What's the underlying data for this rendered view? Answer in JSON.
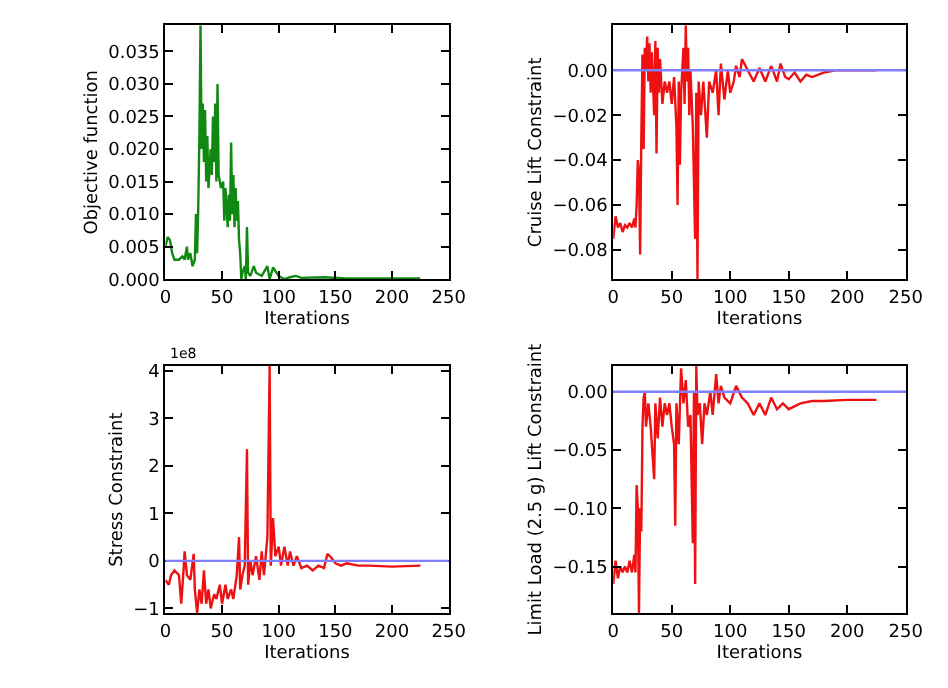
{
  "chart_data": [
    {
      "type": "line",
      "xlabel": "Iterations",
      "ylabel": "Objective function",
      "xlim": [
        0,
        250
      ],
      "xticks": [
        0,
        50,
        100,
        150,
        200,
        250
      ],
      "ylim": [
        0,
        0.039
      ],
      "yticks": [
        {
          "value": 0,
          "label": "0.000"
        },
        {
          "value": 0.005,
          "label": "0.005"
        },
        {
          "value": 0.01,
          "label": "0.010"
        },
        {
          "value": 0.015,
          "label": "0.015"
        },
        {
          "value": 0.02,
          "label": "0.020"
        },
        {
          "value": 0.025,
          "label": "0.025"
        },
        {
          "value": 0.03,
          "label": "0.030"
        },
        {
          "value": 0.035,
          "label": "0.035"
        }
      ],
      "x": [
        0,
        2,
        4,
        6,
        8,
        12,
        15,
        17,
        19,
        20,
        22,
        24,
        26,
        27,
        28,
        29,
        30,
        31,
        32,
        33,
        34,
        35,
        36,
        37,
        38,
        40,
        41,
        42,
        43,
        44,
        45,
        46,
        47,
        49,
        51,
        52,
        53,
        55,
        56,
        57,
        58,
        59,
        60,
        61,
        62,
        63,
        64,
        65,
        66,
        67,
        68,
        70,
        71,
        72,
        73,
        75,
        78,
        80,
        85,
        90,
        92,
        95,
        100,
        105,
        110,
        115,
        120,
        140,
        160,
        200,
        225
      ],
      "series": [
        {
          "color": "#118811",
          "values": [
            0.005,
            0.0065,
            0.006,
            0.004,
            0.003,
            0.003,
            0.0035,
            0.003,
            0.005,
            0.003,
            0.004,
            0.002,
            0.003,
            0.01,
            0.004,
            0.011,
            0.022,
            0.039,
            0.02,
            0.027,
            0.018,
            0.026,
            0.015,
            0.022,
            0.014,
            0.02,
            0.016,
            0.025,
            0.018,
            0.027,
            0.015,
            0.03,
            0.016,
            0.014,
            0.015,
            0.009,
            0.014,
            0.008,
            0.013,
            0.009,
            0.021,
            0.01,
            0.016,
            0.008,
            0.014,
            0.009,
            0.012,
            0.006,
            0.004,
            0,
            0.001,
            0.002,
            0,
            0.008,
            0.001,
            0.0005,
            0.002,
            0.001,
            0.0005,
            0.002,
            0,
            0.0018,
            0.0005,
            0,
            0.0003,
            0.0005,
            0.0002,
            0.0003,
            0.0001,
            0.0001,
            0.0001
          ]
        }
      ]
    },
    {
      "type": "line",
      "xlabel": "Iterations",
      "ylabel": "Cruise Lift Constraint",
      "xlim": [
        0,
        250
      ],
      "xticks": [
        0,
        50,
        100,
        150,
        200,
        250
      ],
      "ylim": [
        -0.093,
        0.02
      ],
      "yticks": [
        {
          "value": -0.08,
          "label": "−0.08"
        },
        {
          "value": -0.06,
          "label": "−0.06"
        },
        {
          "value": -0.04,
          "label": "−0.04"
        },
        {
          "value": -0.02,
          "label": "−0.02"
        },
        {
          "value": 0,
          "label": "0.00"
        }
      ],
      "ref_lines": [
        {
          "axis": "y",
          "value": 0,
          "color": "#7f7fff"
        }
      ],
      "x": [
        0,
        2,
        4,
        6,
        8,
        10,
        12,
        14,
        16,
        18,
        19,
        20,
        21,
        22,
        23,
        24,
        25,
        26,
        27,
        28,
        29,
        30,
        31,
        32,
        33,
        35,
        36,
        37,
        38,
        39,
        40,
        42,
        44,
        46,
        48,
        50,
        52,
        54,
        55,
        56,
        57,
        58,
        60,
        61,
        62,
        63,
        64,
        65,
        66,
        68,
        70,
        71,
        72,
        73,
        75,
        77,
        80,
        82,
        85,
        88,
        90,
        92,
        95,
        98,
        100,
        103,
        105,
        108,
        110,
        115,
        120,
        125,
        130,
        135,
        140,
        143,
        147,
        150,
        155,
        160,
        165,
        170,
        180,
        190,
        200,
        225
      ],
      "series": [
        {
          "color": "#ee1111",
          "values": [
            -0.075,
            -0.065,
            -0.07,
            -0.068,
            -0.072,
            -0.069,
            -0.07,
            -0.068,
            -0.07,
            -0.066,
            -0.07,
            -0.06,
            -0.04,
            -0.045,
            -0.082,
            -0.03,
            0.007,
            -0.035,
            0.01,
            0,
            0.015,
            -0.005,
            0.012,
            -0.01,
            0.008,
            -0.02,
            0.013,
            -0.037,
            0.01,
            -0.01,
            0.005,
            -0.015,
            -0.005,
            -0.01,
            -0.005,
            -0.015,
            -0.003,
            -0.025,
            -0.06,
            -0.005,
            -0.042,
            -0.01,
            0.01,
            -0.015,
            0.02,
            -0.005,
            0.01,
            -0.02,
            0,
            -0.025,
            -0.075,
            -0.01,
            -0.093,
            -0.005,
            -0.02,
            -0.005,
            -0.03,
            -0.005,
            -0.01,
            0,
            -0.02,
            0.003,
            -0.013,
            0,
            -0.01,
            -0.005,
            0.002,
            -0.003,
            0.005,
            0,
            -0.005,
            0.001,
            -0.005,
            0.002,
            -0.005,
            0.003,
            -0.003,
            -0.004,
            -0.001,
            -0.005,
            -0.002,
            -0.003,
            -0.001,
            0,
            0,
            0
          ]
        }
      ]
    },
    {
      "type": "line",
      "xlabel": "Iterations",
      "ylabel": "Stress Constraint",
      "annotations": [
        "1e8"
      ],
      "xlim": [
        0,
        250
      ],
      "xticks": [
        0,
        50,
        100,
        150,
        200,
        250
      ],
      "ylim": [
        -1.1,
        4.1
      ],
      "yticks": [
        {
          "value": -1,
          "label": "−1"
        },
        0,
        1,
        2,
        3,
        4
      ],
      "ref_lines": [
        {
          "axis": "y",
          "value": 0,
          "color": "#7f7fff"
        }
      ],
      "x": [
        0,
        3,
        5,
        8,
        12,
        14,
        16,
        17,
        19,
        22,
        25,
        26,
        28,
        30,
        32,
        34,
        36,
        38,
        40,
        43,
        45,
        48,
        50,
        53,
        55,
        58,
        60,
        63,
        65,
        66,
        68,
        70,
        72,
        73,
        75,
        77,
        80,
        83,
        85,
        87,
        90,
        92,
        93,
        95,
        97,
        100,
        102,
        105,
        108,
        110,
        113,
        116,
        120,
        125,
        130,
        135,
        140,
        143,
        147,
        150,
        155,
        160,
        170,
        180,
        200,
        225
      ],
      "series": [
        {
          "color": "#ee1111",
          "values": [
            -0.4,
            -0.5,
            -0.3,
            -0.2,
            -0.3,
            -0.9,
            -0.2,
            0.2,
            -0.3,
            -0.4,
            0.15,
            -0.6,
            -1.1,
            -0.6,
            -0.9,
            -0.2,
            -0.9,
            -0.6,
            -1.0,
            -0.7,
            -0.8,
            -0.5,
            -0.9,
            -0.5,
            -0.8,
            -0.6,
            -0.8,
            -0.3,
            0.5,
            -0.6,
            -0.3,
            -0.1,
            2.35,
            -0.5,
            0,
            -0.3,
            0.1,
            -0.4,
            0.2,
            -0.3,
            0.5,
            4.1,
            -0.1,
            0.9,
            0.1,
            0.3,
            -0.1,
            0.3,
            -0.1,
            0.2,
            -0.1,
            0.1,
            -0.15,
            -0.1,
            -0.2,
            -0.1,
            -0.15,
            0.15,
            0.05,
            -0.05,
            -0.1,
            -0.05,
            -0.1,
            -0.1,
            -0.12,
            -0.1
          ]
        }
      ]
    },
    {
      "type": "line",
      "xlabel": "Iterations",
      "ylabel": "Limit Load (2.5 g) Lift Constraint",
      "xlim": [
        0,
        250
      ],
      "xticks": [
        0,
        50,
        100,
        150,
        200,
        250
      ],
      "ylim": [
        -0.19,
        0.022
      ],
      "yticks": [
        {
          "value": -0.15,
          "label": "−0.15"
        },
        {
          "value": -0.1,
          "label": "−0.10"
        },
        {
          "value": -0.05,
          "label": "−0.05"
        },
        {
          "value": 0,
          "label": "0.00"
        }
      ],
      "ref_lines": [
        {
          "axis": "y",
          "value": 0,
          "color": "#7f7fff"
        }
      ],
      "x": [
        0,
        2,
        4,
        6,
        8,
        10,
        12,
        14,
        16,
        18,
        19,
        20,
        21,
        22,
        23,
        24,
        25,
        26,
        27,
        28,
        30,
        32,
        34,
        35,
        36,
        38,
        40,
        42,
        44,
        46,
        48,
        50,
        52,
        53,
        54,
        56,
        58,
        60,
        62,
        64,
        66,
        68,
        69,
        70,
        71,
        72,
        74,
        76,
        78,
        80,
        83,
        85,
        88,
        90,
        92,
        95,
        100,
        105,
        110,
        115,
        120,
        125,
        130,
        135,
        140,
        145,
        150,
        160,
        170,
        180,
        200,
        225
      ],
      "series": [
        {
          "color": "#ee1111",
          "values": [
            -0.165,
            -0.145,
            -0.16,
            -0.15,
            -0.155,
            -0.15,
            -0.155,
            -0.145,
            -0.155,
            -0.14,
            -0.155,
            -0.08,
            -0.1,
            -0.19,
            -0.1,
            -0.12,
            -0.03,
            -0.005,
            0,
            -0.03,
            -0.01,
            -0.03,
            -0.06,
            -0.075,
            -0.01,
            -0.04,
            -0.005,
            -0.03,
            -0.01,
            -0.02,
            -0.01,
            -0.03,
            -0.045,
            -0.115,
            -0.01,
            -0.045,
            0.02,
            -0.01,
            0.01,
            -0.03,
            -0.02,
            -0.13,
            0,
            -0.165,
            0.022,
            -0.02,
            -0.01,
            -0.045,
            -0.01,
            -0.02,
            0,
            -0.02,
            0.015,
            -0.01,
            0.005,
            -0.005,
            -0.01,
            0.005,
            -0.005,
            -0.01,
            -0.02,
            -0.01,
            -0.02,
            -0.005,
            -0.015,
            -0.01,
            -0.015,
            -0.01,
            -0.008,
            -0.008,
            -0.007,
            -0.007
          ]
        }
      ]
    }
  ]
}
